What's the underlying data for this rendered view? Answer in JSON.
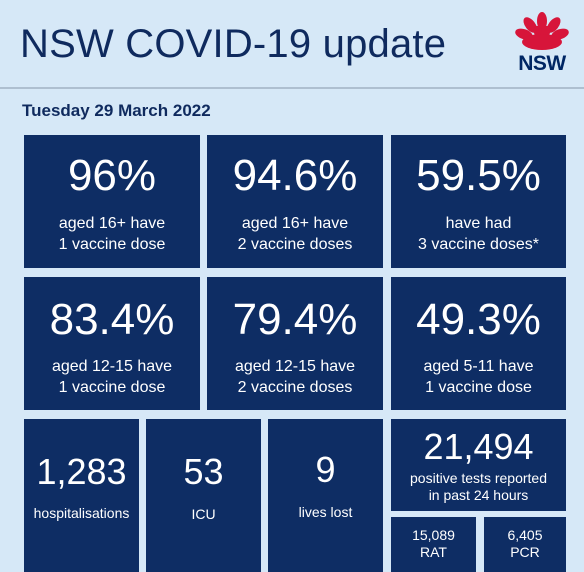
{
  "header": {
    "title": "NSW COVID-19 update",
    "logo_text": "NSW"
  },
  "date": "Tuesday 29 March 2022",
  "vaccine_stats": [
    {
      "value": "96%",
      "line1": "aged 16+ have",
      "line2": "1 vaccine dose"
    },
    {
      "value": "94.6%",
      "line1": "aged 16+ have",
      "line2": "2 vaccine doses"
    },
    {
      "value": "59.5%",
      "line1": "have had",
      "line2": "3 vaccine doses*"
    },
    {
      "value": "83.4%",
      "line1": "aged 12-15 have",
      "line2": "1 vaccine dose"
    },
    {
      "value": "79.4%",
      "line1": "aged 12-15 have",
      "line2": "2 vaccine doses"
    },
    {
      "value": "49.3%",
      "line1": "aged 5-11 have",
      "line2": "1 vaccine dose"
    }
  ],
  "hospital_stats": [
    {
      "value": "1,283",
      "label": "hospitalisations"
    },
    {
      "value": "53",
      "label": "ICU"
    },
    {
      "value": "9",
      "label": "lives lost"
    }
  ],
  "tests": {
    "value": "21,494",
    "line1": "positive tests reported",
    "line2": "in past 24 hours",
    "rat": {
      "value": "15,089",
      "label": "RAT"
    },
    "pcr": {
      "value": "6,405",
      "label": "PCR"
    }
  },
  "colors": {
    "background": "#d6e8f7",
    "tile": "#0e2d64",
    "title": "#0f2a5e",
    "waratah_red": "#d7153a"
  }
}
